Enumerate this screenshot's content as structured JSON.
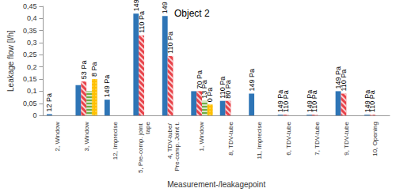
{
  "chart_data": {
    "type": "bar",
    "title": "Object 2",
    "x_label": "Measurement-/leakagepoint",
    "y_label": "Leakage flow [l/h]",
    "categories": [
      "2, Window",
      "3, Window",
      "12, Imprecise",
      "5, Pre-comp. joint tape",
      "4, TDV-tube/ Pre-comp. Joint t.",
      "1, Window",
      "8, TDV-tube",
      "11, Imprecise",
      "6, TDV-tube",
      "7, TDV-tube",
      "9, TDV-tube",
      "10, Opening"
    ],
    "series": [
      {
        "color": "#2e75b6",
        "values": [
          0.005,
          0.125,
          0.065,
          0.42,
          0.41,
          0.1,
          0.06,
          0.09,
          0.003,
          0.003,
          0.1,
          0.003
        ],
        "pressure_labels": [
          "12 Pa",
          null,
          "149 Pa",
          "149 Pa",
          "149 Pa",
          null,
          "110 Pa",
          "149 Pa",
          "149 Pa",
          "149 Pa",
          "149 Pa",
          "149 Pa"
        ]
      },
      {
        "color": "#e8434a",
        "values": [
          null,
          0.14,
          null,
          0.33,
          0.245,
          0.1,
          0.06,
          null,
          0.003,
          0.003,
          0.09,
          0.003
        ],
        "pressure_labels": [
          null,
          "53 Pa",
          null,
          "110 Pa",
          "110 Pa",
          "70 Pa",
          "80 Pa",
          null,
          "110 Pa",
          "110 Pa",
          "110 Pa",
          "110 Pa"
        ]
      },
      {
        "color": "#70ad47",
        "values": [
          null,
          0.1,
          null,
          null,
          null,
          0.06,
          null,
          null,
          null,
          null,
          null,
          null
        ],
        "pressure_labels": [
          null,
          null,
          null,
          null,
          null,
          "13 Pa",
          null,
          null,
          null,
          null,
          null,
          null
        ]
      },
      {
        "color": "#ffc000",
        "values": [
          null,
          0.15,
          null,
          null,
          null,
          0.045,
          null,
          null,
          null,
          null,
          null,
          null
        ],
        "pressure_labels": [
          null,
          "8 Pa",
          null,
          null,
          null,
          "0 Pa",
          null,
          null,
          null,
          null,
          null,
          null
        ]
      }
    ],
    "ylim": [
      0,
      0.45
    ],
    "yticks": [
      0,
      {
        "value": 0.05,
        "label": "0,05"
      },
      {
        "value": 0.1,
        "label": "0,1"
      },
      {
        "value": 0.15,
        "label": "0,15"
      },
      {
        "value": 0.2,
        "label": "0,2"
      },
      {
        "value": 0.25,
        "label": "0,25"
      },
      {
        "value": 0.3,
        "label": "0,3"
      },
      {
        "value": 0.35,
        "label": "0,35"
      },
      {
        "value": 0.4,
        "label": "0,4"
      },
      {
        "value": 0.45,
        "label": "0,45"
      }
    ],
    "grid": false
  }
}
